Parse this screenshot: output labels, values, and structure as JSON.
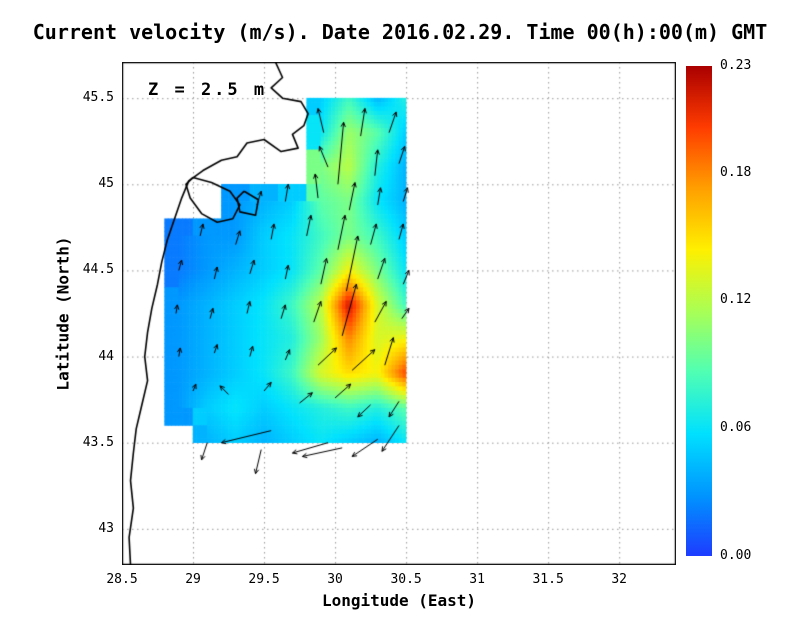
{
  "title": "Current velocity (m/s). Date 2016.02.29. Time 00(h):00(m) GMT",
  "annotation": "Z = 2.5 m",
  "axes": {
    "xlabel": "Longitude (East)",
    "ylabel": "Latitude (North)",
    "x_tick_values": [
      28.5,
      29,
      29.5,
      30,
      30.5,
      31,
      31.5,
      32
    ],
    "x_tick_labels": [
      "28.5",
      "29",
      "29.5",
      "30",
      "30.5",
      "31",
      "31.5",
      "32"
    ],
    "y_tick_values": [
      43,
      43.5,
      44,
      44.5,
      45,
      45.5
    ],
    "y_tick_labels": [
      "43",
      "43.5",
      "44",
      "44.5",
      "45",
      "45.5"
    ]
  },
  "colorbar": {
    "min": 0,
    "max": 0.23,
    "tick_values": [
      0,
      0.06,
      0.12,
      0.18,
      0.23
    ],
    "tick_labels": [
      "0.00",
      "0.06",
      "0.12",
      "0.18",
      "0.23"
    ]
  },
  "chart_data": {
    "type": "heatmap",
    "field": "current velocity",
    "units": "m/s",
    "date": "2016.02.29",
    "time": "00(h):00(m) GMT",
    "depth_m": 2.5,
    "xlabel": "Longitude (East)",
    "ylabel": "Latitude (North)",
    "xlim": [
      28.5,
      32.4
    ],
    "ylim": [
      42.79,
      45.71
    ],
    "grid": "dotted",
    "value_range": [
      0,
      0.23
    ],
    "colormap_stops": [
      [
        0.0,
        "#1e3cff"
      ],
      [
        0.125,
        "#0096ff"
      ],
      [
        0.25,
        "#00e1ff"
      ],
      [
        0.375,
        "#50ffb4"
      ],
      [
        0.5,
        "#aaff55"
      ],
      [
        0.625,
        "#fff000"
      ],
      [
        0.75,
        "#ffa000"
      ],
      [
        0.875,
        "#ff3c00"
      ],
      [
        1.0,
        "#aa0000"
      ]
    ],
    "lon": [
      28.7,
      28.9,
      29.1,
      29.3,
      29.5,
      29.7,
      29.9,
      30.1,
      30.3,
      30.5
    ],
    "lat": [
      45.5,
      45.3,
      45.1,
      44.9,
      44.7,
      44.5,
      44.3,
      44.1,
      43.9,
      43.7,
      43.5
    ],
    "values": [
      [
        null,
        null,
        null,
        null,
        null,
        null,
        0.05,
        0.08,
        0.04,
        0.07
      ],
      [
        null,
        null,
        null,
        null,
        null,
        null,
        0.06,
        0.11,
        0.09,
        0.05
      ],
      [
        null,
        null,
        null,
        null,
        null,
        null,
        0.1,
        0.12,
        0.07,
        0.04
      ],
      [
        null,
        null,
        null,
        0.03,
        0.04,
        0.05,
        0.09,
        0.1,
        0.06,
        0.04
      ],
      [
        null,
        0.02,
        0.03,
        0.03,
        0.05,
        0.06,
        0.08,
        0.1,
        0.08,
        0.05
      ],
      [
        null,
        0.02,
        0.03,
        0.04,
        0.05,
        0.06,
        0.09,
        0.14,
        0.1,
        0.06
      ],
      [
        null,
        0.03,
        0.04,
        0.05,
        0.06,
        0.08,
        0.12,
        0.22,
        0.13,
        0.08
      ],
      [
        null,
        0.03,
        0.04,
        0.05,
        0.06,
        0.07,
        0.11,
        0.18,
        0.13,
        0.14
      ],
      [
        null,
        0.03,
        0.04,
        0.05,
        0.06,
        0.08,
        0.13,
        0.15,
        0.14,
        0.2
      ],
      [
        null,
        0.03,
        0.05,
        0.06,
        0.05,
        0.06,
        0.07,
        0.08,
        0.07,
        0.09
      ],
      [
        null,
        null,
        0.04,
        0.05,
        0.04,
        0.05,
        0.06,
        0.05,
        0.04,
        0.06
      ]
    ],
    "vectors": [
      [
        29.92,
        45.3,
        -0.04,
        0.14
      ],
      [
        30.18,
        45.28,
        0.03,
        0.16
      ],
      [
        30.38,
        45.3,
        0.05,
        0.12
      ],
      [
        30.02,
        45.0,
        0.04,
        0.36
      ],
      [
        29.95,
        45.1,
        -0.06,
        0.12
      ],
      [
        30.28,
        45.05,
        0.02,
        0.15
      ],
      [
        30.45,
        45.12,
        0.04,
        0.1
      ],
      [
        29.45,
        44.88,
        0.03,
        0.08
      ],
      [
        29.65,
        44.9,
        0.02,
        0.1
      ],
      [
        29.88,
        44.92,
        -0.02,
        0.14
      ],
      [
        30.1,
        44.85,
        0.04,
        0.16
      ],
      [
        30.3,
        44.88,
        0.02,
        0.1
      ],
      [
        30.48,
        44.9,
        0.03,
        0.08
      ],
      [
        29.05,
        44.7,
        0.02,
        0.07
      ],
      [
        29.3,
        44.65,
        0.03,
        0.08
      ],
      [
        29.55,
        44.68,
        0.02,
        0.09
      ],
      [
        29.8,
        44.7,
        0.03,
        0.12
      ],
      [
        30.02,
        44.62,
        0.05,
        0.2
      ],
      [
        30.25,
        44.65,
        0.04,
        0.12
      ],
      [
        30.45,
        44.68,
        0.03,
        0.09
      ],
      [
        28.9,
        44.5,
        0.02,
        0.06
      ],
      [
        29.15,
        44.45,
        0.02,
        0.07
      ],
      [
        29.4,
        44.48,
        0.03,
        0.08
      ],
      [
        29.65,
        44.45,
        0.02,
        0.08
      ],
      [
        29.9,
        44.42,
        0.04,
        0.15
      ],
      [
        30.08,
        44.38,
        0.08,
        0.32
      ],
      [
        30.3,
        44.45,
        0.05,
        0.12
      ],
      [
        30.48,
        44.42,
        0.04,
        0.08
      ],
      [
        28.88,
        44.25,
        0.01,
        0.05
      ],
      [
        29.12,
        44.22,
        0.02,
        0.06
      ],
      [
        29.38,
        44.25,
        0.02,
        0.07
      ],
      [
        29.62,
        44.22,
        0.03,
        0.08
      ],
      [
        29.85,
        44.2,
        0.05,
        0.12
      ],
      [
        30.05,
        44.12,
        0.1,
        0.3
      ],
      [
        30.28,
        44.2,
        0.08,
        0.12
      ],
      [
        30.47,
        44.22,
        0.05,
        0.06
      ],
      [
        28.9,
        44.0,
        0.01,
        0.05
      ],
      [
        29.15,
        44.02,
        0.02,
        0.05
      ],
      [
        29.4,
        44.0,
        0.02,
        0.06
      ],
      [
        29.65,
        43.98,
        0.03,
        0.06
      ],
      [
        29.88,
        43.95,
        0.13,
        0.1
      ],
      [
        30.12,
        43.92,
        0.16,
        0.12
      ],
      [
        30.35,
        43.95,
        0.06,
        0.16
      ],
      [
        29.0,
        43.8,
        0.02,
        0.04
      ],
      [
        29.25,
        43.78,
        -0.06,
        0.05
      ],
      [
        29.5,
        43.8,
        0.05,
        0.05
      ],
      [
        29.75,
        43.73,
        0.09,
        0.06
      ],
      [
        30.0,
        43.76,
        0.11,
        0.08
      ],
      [
        30.25,
        43.72,
        -0.09,
        -0.07
      ],
      [
        30.45,
        43.74,
        -0.07,
        -0.09
      ],
      [
        29.55,
        43.57,
        -0.35,
        -0.07
      ],
      [
        29.95,
        43.5,
        -0.25,
        -0.06
      ],
      [
        30.05,
        43.47,
        -0.28,
        -0.05
      ],
      [
        30.3,
        43.52,
        -0.18,
        -0.1
      ],
      [
        30.45,
        43.6,
        -0.12,
        -0.15
      ],
      [
        29.1,
        43.5,
        -0.04,
        -0.1
      ],
      [
        29.48,
        43.46,
        -0.04,
        -0.14
      ]
    ],
    "coastline": [
      [
        [
          29.58,
          45.71
        ],
        [
          29.63,
          45.62
        ],
        [
          29.55,
          45.56
        ],
        [
          29.63,
          45.5
        ],
        [
          29.76,
          45.48
        ],
        [
          29.81,
          45.41
        ],
        [
          29.78,
          45.34
        ],
        [
          29.7,
          45.29
        ],
        [
          29.74,
          45.21
        ],
        [
          29.62,
          45.19
        ],
        [
          29.5,
          45.26
        ],
        [
          29.38,
          45.24
        ],
        [
          29.31,
          45.16
        ],
        [
          29.2,
          45.14
        ],
        [
          29.07,
          45.08
        ],
        [
          28.97,
          45.02
        ],
        [
          28.92,
          44.92
        ],
        [
          28.87,
          44.8
        ],
        [
          28.82,
          44.68
        ],
        [
          28.78,
          44.55
        ],
        [
          28.75,
          44.42
        ],
        [
          28.71,
          44.28
        ],
        [
          28.68,
          44.14
        ],
        [
          28.66,
          44.0
        ],
        [
          28.68,
          43.86
        ],
        [
          28.64,
          43.72
        ],
        [
          28.6,
          43.58
        ],
        [
          28.58,
          43.44
        ],
        [
          28.56,
          43.28
        ],
        [
          28.58,
          43.12
        ],
        [
          28.55,
          42.95
        ],
        [
          28.56,
          42.79
        ]
      ],
      [
        [
          29.0,
          45.04
        ],
        [
          29.13,
          45.01
        ],
        [
          29.26,
          44.96
        ],
        [
          29.33,
          44.88
        ],
        [
          29.28,
          44.8
        ],
        [
          29.17,
          44.78
        ],
        [
          29.06,
          44.83
        ],
        [
          28.98,
          44.92
        ],
        [
          28.95,
          45.0
        ],
        [
          29.0,
          45.04
        ]
      ],
      [
        [
          29.36,
          44.96
        ],
        [
          29.46,
          44.91
        ],
        [
          29.44,
          44.82
        ],
        [
          29.33,
          44.84
        ],
        [
          29.31,
          44.92
        ],
        [
          29.36,
          44.96
        ]
      ]
    ]
  }
}
